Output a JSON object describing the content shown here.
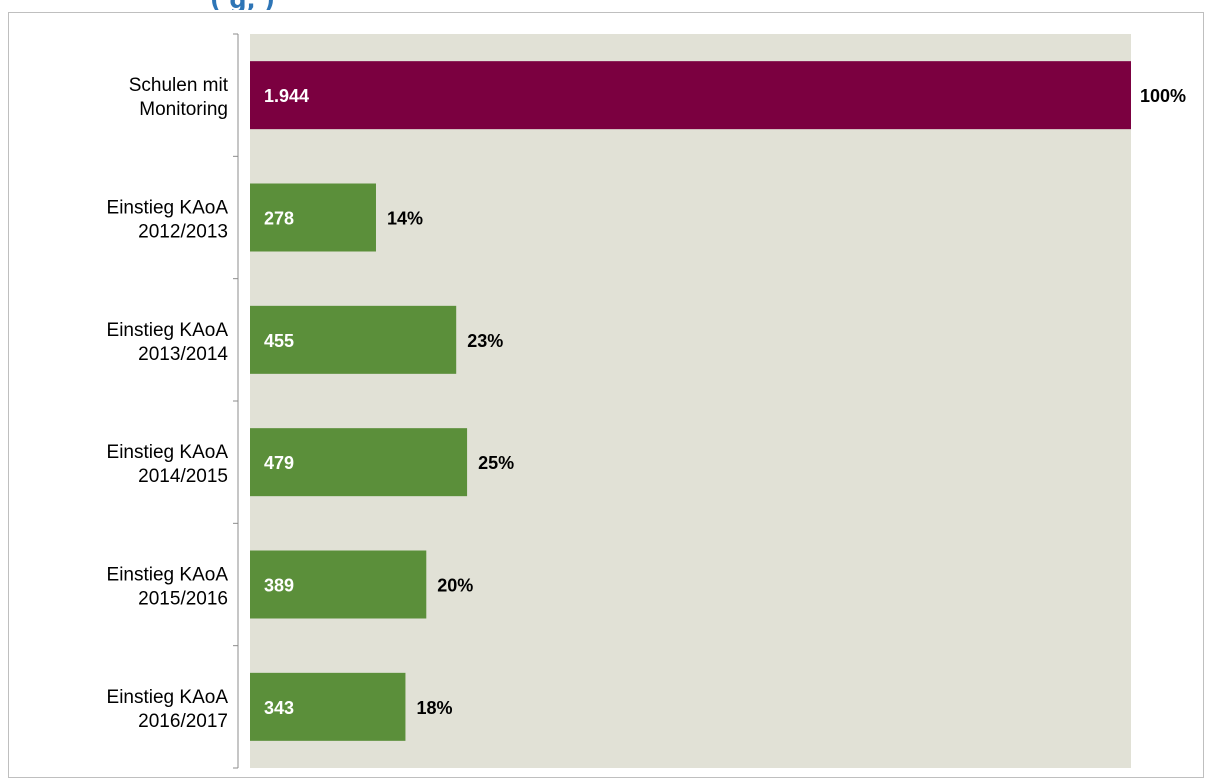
{
  "header_partial_text": "(                                          g,         )",
  "chart_data": {
    "type": "bar",
    "orientation": "horizontal",
    "categories": [
      [
        "Schulen mit",
        "Monitoring"
      ],
      [
        "Einstieg KAoA",
        "2012/2013"
      ],
      [
        "Einstieg KAoA",
        "2013/2014"
      ],
      [
        "Einstieg KAoA",
        "2014/2015"
      ],
      [
        "Einstieg KAoA",
        "2015/2016"
      ],
      [
        "Einstieg KAoA",
        "2016/2017"
      ]
    ],
    "values": [
      1944,
      278,
      455,
      479,
      389,
      343
    ],
    "value_labels": [
      "1.944",
      "278",
      "455",
      "479",
      "389",
      "343"
    ],
    "percent_labels": [
      "100%",
      "14%",
      "23%",
      "25%",
      "20%",
      "18%"
    ],
    "xlim": [
      0,
      1944
    ],
    "colors": {
      "total": "#7b0040",
      "cohort": "#5b8f3a",
      "plot_background": "#e1e1d6",
      "axis": "#8c8c8c"
    },
    "grid": false,
    "legend": "none"
  }
}
